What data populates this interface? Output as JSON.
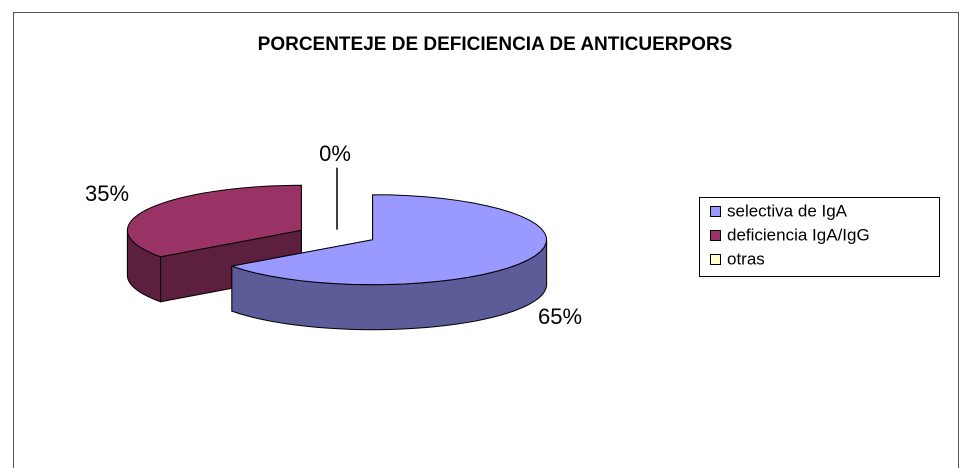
{
  "chart_data": {
    "type": "pie3d",
    "title": "PORCENTEJE DE DEFICIENCIA DE ANTICUERPORS",
    "categories": [
      "selectiva de IgA",
      "deficiencia IgA/IgG",
      "otras"
    ],
    "values": [
      65,
      35,
      0
    ],
    "value_labels": [
      "65%",
      "35%",
      "0%"
    ],
    "colors": [
      "#9999ff",
      "#993366",
      "#ffffcc"
    ],
    "legend": "right"
  }
}
